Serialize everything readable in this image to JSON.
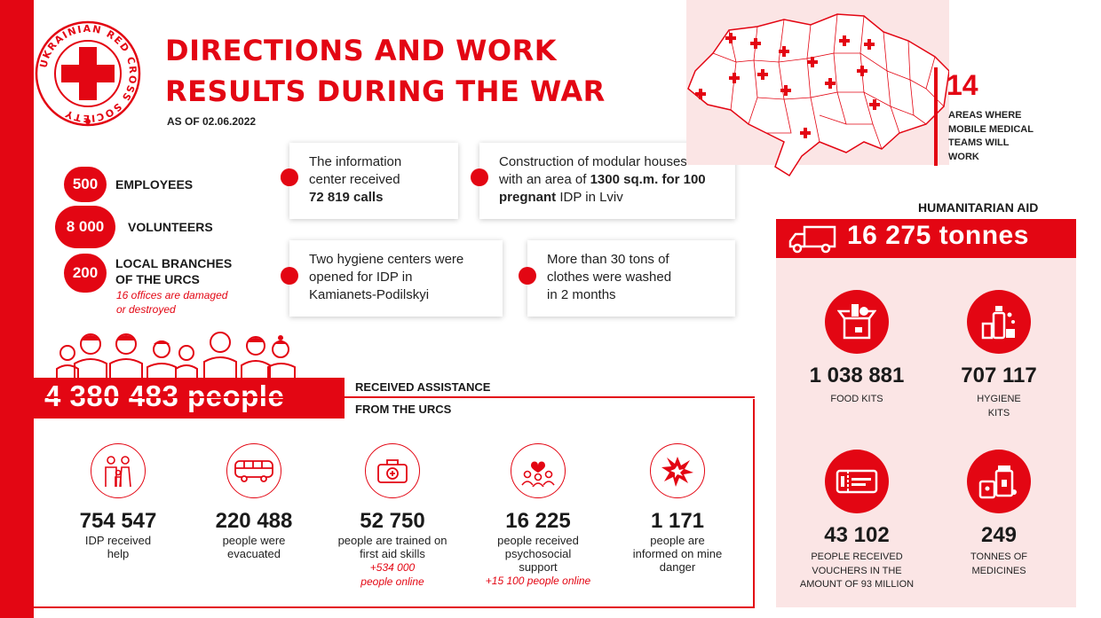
{
  "logo": {
    "text": "UKRAINIAN RED CROSS SOCIETY"
  },
  "header": {
    "title_line1": "DIRECTIONS AND WORK",
    "title_line2": "RESULTS DURING THE WAR",
    "as_of": "AS OF 02.06.2022"
  },
  "stats": [
    {
      "value": "500",
      "label": "EMPLOYEES"
    },
    {
      "value": "8 000",
      "label": "VOLUNTEERS"
    },
    {
      "value": "200",
      "label_line1": "LOCAL BRANCHES",
      "label_line2": "OF THE URCS",
      "note_line1": "16 offices are damaged",
      "note_line2": "or destroyed"
    }
  ],
  "cards": [
    {
      "line1": "The information",
      "line2": "center received",
      "line3": "72 819 calls"
    },
    {
      "line1": "Construction of modular houses",
      "line2a": "with an area of ",
      "line2b": "1300 sq.m. for 100",
      "line3a": "pregnant",
      "line3b": " IDP in Lviv"
    },
    {
      "line1": "Two hygiene centers were",
      "line2": "opened for IDP in",
      "line3": "Kamianets-Podilskyi"
    },
    {
      "line1": "More than 30 tons of",
      "line2": "clothes were washed",
      "line3": "in 2 months"
    }
  ],
  "map": {
    "areas_value": "14",
    "areas_line1": "AREAS WHERE",
    "areas_line2": "MOBILE MEDICAL",
    "areas_line3": "TEAMS WILL",
    "areas_line4": "WORK"
  },
  "humanitarian": {
    "title": "HUMANITARIAN AID",
    "tonnes": "16 275  tonnes",
    "items": [
      {
        "value": "1 038 881",
        "cap1": "FOOD KITS",
        "cap2": "",
        "cap3": "",
        "icon": "food-box-icon"
      },
      {
        "value": "707 117",
        "cap1": "HYGIENE",
        "cap2": "KITS",
        "cap3": "",
        "icon": "hygiene-bottles-icon"
      },
      {
        "value": "43 102",
        "cap1": "PEOPLE RECEIVED",
        "cap2": "VOUCHERS IN THE",
        "cap3": "AMOUNT OF 93 MILLION",
        "icon": "voucher-icon"
      },
      {
        "value": "249",
        "cap1": "TONNES OF",
        "cap2": "MEDICINES",
        "cap3": "",
        "icon": "medicines-icon"
      }
    ]
  },
  "people": {
    "total": "4 380 483  people",
    "received_line1": "RECEIVED ASSISTANCE",
    "received_line2": "FROM THE URCS"
  },
  "breakdown": [
    {
      "value": "754 547",
      "cap1": "IDP received",
      "cap2": "help",
      "cap3": "",
      "note1": "",
      "note2": "",
      "icon": "family-icon"
    },
    {
      "value": "220 488",
      "cap1": "people were",
      "cap2": "evacuated",
      "cap3": "",
      "note1": "",
      "note2": "",
      "icon": "bus-icon"
    },
    {
      "value": "52 750",
      "cap1": "people are trained on",
      "cap2": "first aid skills",
      "cap3": "",
      "note1": "+534 000",
      "note2": "people online",
      "icon": "first-aid-kit-icon"
    },
    {
      "value": "16 225",
      "cap1": "people received",
      "cap2": "psychosocial",
      "cap3": "support",
      "note1": "+15 100 people online",
      "note2": "",
      "icon": "psychosocial-icon"
    },
    {
      "value": "1 171",
      "cap1": "people are",
      "cap2": "informed on mine",
      "cap3": "danger",
      "note1": "",
      "note2": "",
      "icon": "explosion-icon"
    }
  ],
  "colors": {
    "accent": "#e30613",
    "panel": "#fbe5e5"
  }
}
